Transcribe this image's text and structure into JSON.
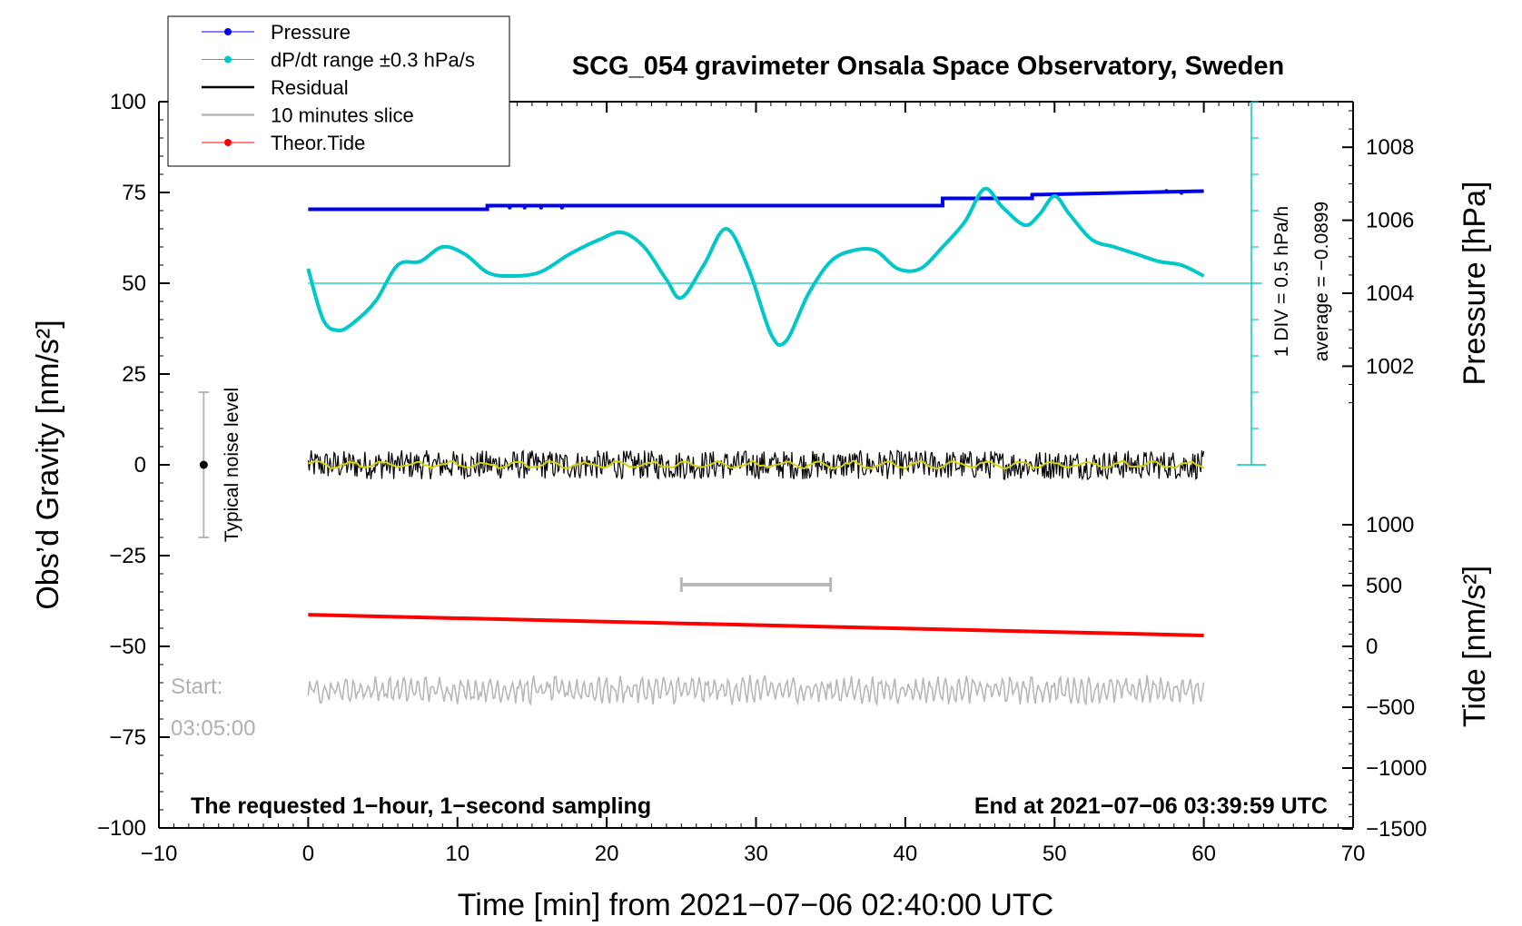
{
  "chart_data": {
    "type": "line",
    "title": "SCG_054 gravimeter Onsala Space Observatory, Sweden",
    "xlabel": "Time [min] from 2021−07−06 02:40:00 UTC",
    "ylabel_left": "Obs’d Gravity [nm/s²]",
    "ylabel_pressure": "Pressure [hPa]",
    "ylabel_tide": "Tide [nm/s²]",
    "xlim": [
      -10,
      70
    ],
    "ylim": [
      -100,
      100
    ],
    "x_ticks": [
      "−10",
      "0",
      "10",
      "20",
      "30",
      "40",
      "50",
      "60",
      "70"
    ],
    "y_ticks": [
      "100",
      "75",
      "50",
      "25",
      "0",
      "−25",
      "−50",
      "−75",
      "−100"
    ],
    "pressure_ticks": [
      "1008",
      "1006",
      "1004",
      "1002"
    ],
    "pressure_tick_values": [
      1008,
      1006,
      1004,
      1002
    ],
    "pressure_range": [
      1000.0,
      1010.0
    ],
    "tide_ticks": [
      "1000",
      "500",
      "0",
      "−500",
      "−1000",
      "−1500"
    ],
    "tide_tick_values": [
      1000,
      500,
      0,
      -500,
      -1000,
      -1500
    ],
    "tide_range": [
      -1500,
      1500
    ],
    "legend": [
      {
        "label": "Pressure",
        "color": "#0000ee",
        "marker": true
      },
      {
        "label": "dP/dt range ±0.3 hPa/s",
        "color": "#00c8c8",
        "marker": true
      },
      {
        "label": "Residual",
        "color": "#000000",
        "marker": false
      },
      {
        "label": "10 minutes slice",
        "color": "#b8b8b8",
        "marker": false
      },
      {
        "label": "Theor.Tide",
        "color": "#ff0000",
        "marker": true
      }
    ],
    "series": [
      {
        "name": "Pressure",
        "axis": "pressure",
        "color": "#0000ee",
        "x": [
          0,
          12,
          12,
          42.5,
          42.5,
          48.5,
          48.5,
          60
        ],
        "values": [
          1006.3,
          1006.3,
          1006.4,
          1006.4,
          1006.6,
          1006.6,
          1006.7,
          1006.8
        ]
      },
      {
        "name": "dP/dt",
        "axis": "gravity",
        "color": "#00c8c8",
        "x": [
          0,
          1,
          2,
          3,
          4.5,
          6,
          7.5,
          9,
          10.5,
          12,
          13.5,
          15.5,
          17.5,
          19.5,
          21,
          22.5,
          24,
          25,
          26.5,
          28,
          29.5,
          31,
          32,
          33.5,
          35,
          36.5,
          38,
          39.5,
          41,
          42.5,
          44,
          45.3,
          46.5,
          48,
          49,
          50,
          51,
          52.5,
          54,
          55.5,
          57,
          58.5,
          60
        ],
        "values": [
          54,
          40,
          37,
          39,
          45,
          55,
          56,
          60,
          58,
          53,
          52,
          53,
          58,
          62,
          64,
          60,
          51,
          46,
          55,
          65,
          54,
          36,
          34,
          47,
          56,
          59,
          59,
          54,
          54,
          60,
          67,
          76,
          71,
          66,
          69,
          74,
          69,
          62,
          60,
          58,
          56,
          55,
          52
        ]
      },
      {
        "name": "Residual",
        "axis": "gravity",
        "color": "#000000",
        "x_range": [
          0,
          60
        ],
        "center": 0,
        "amplitude": 4
      },
      {
        "name": "10 minutes slice",
        "axis": "gravity",
        "color": "#b8b8b8",
        "x_range": [
          0,
          60
        ],
        "center": -62,
        "amplitude": 3.5
      },
      {
        "name": "Theor.Tide",
        "axis": "tide",
        "color": "#ff0000",
        "x": [
          0,
          60
        ],
        "values": [
          260,
          90
        ]
      }
    ],
    "reference_line_y": 50,
    "dpdt_scale": {
      "from": 0,
      "to": 100,
      "tick_step": 10
    },
    "slice_bar": {
      "x": [
        25,
        35
      ],
      "y": -33
    },
    "noise_level": {
      "x": -7,
      "y": 0,
      "half_range": 20,
      "label": "Typical noise level"
    },
    "annotations": {
      "scale": "1 DIV = 0.5 hPa/h",
      "average": "average = −0.0899",
      "start_label": "Start:",
      "start_time": "03:05:00",
      "footer_left": "The requested 1−hour, 1−second sampling",
      "footer_right": "End at 2021−07−06 03:39:59 UTC"
    }
  }
}
